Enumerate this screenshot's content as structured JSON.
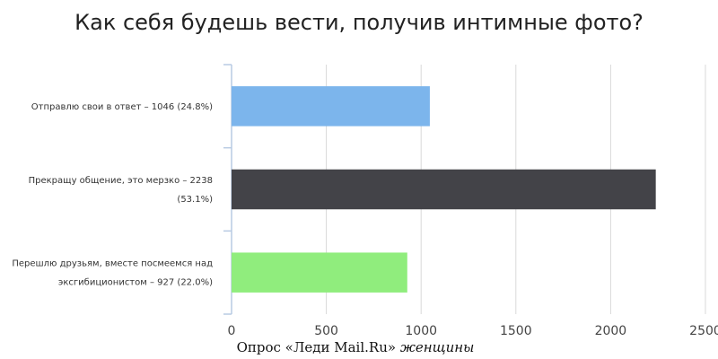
{
  "chart_data": {
    "type": "bar",
    "orientation": "horizontal",
    "title": "Как себя будешь вести, получив интимные фото?",
    "categories": [
      [
        "Отправлю свои в ответ – 1046 (24.8%)"
      ],
      [
        "Прекращу общение, это мерзко – 2238",
        "(53.1%)"
      ],
      [
        "Перешлю друзьям, вместе посмеемся над",
        "эксгибиционистом – 927 (22.0%)"
      ]
    ],
    "values": [
      1046,
      2238,
      927
    ],
    "colors": [
      "#7cb5ec",
      "#434348",
      "#90ed7d"
    ],
    "xlim": [
      0,
      2500
    ],
    "ticks": [
      0,
      500,
      1000,
      1500,
      2000,
      2500
    ],
    "grid": true
  },
  "caption": {
    "main": "Опрос «Леди Mail.Ru»",
    "italic": " женщины"
  }
}
